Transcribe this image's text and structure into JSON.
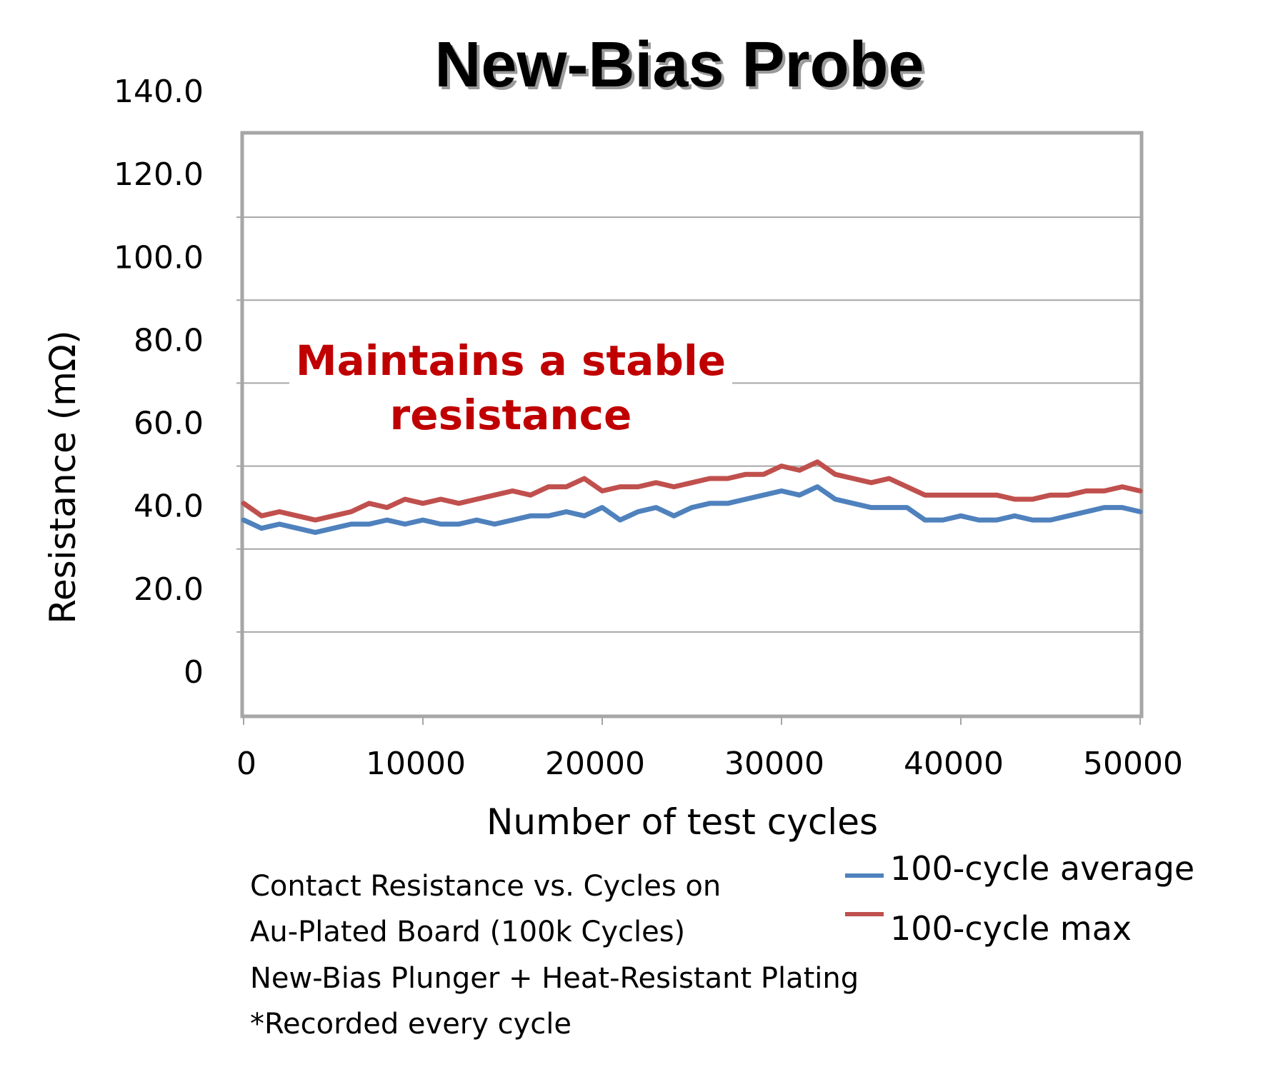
{
  "chart_data": {
    "type": "line",
    "title": "New-Bias Probe",
    "xlabel": "Number of test cycles",
    "ylabel": "Resistance (mΩ)",
    "xlim": [
      0,
      50000
    ],
    "ylim": [
      0,
      140
    ],
    "x_ticks": [
      "0",
      "10000",
      "20000",
      "30000",
      "40000",
      "50000"
    ],
    "y_ticks": [
      "0",
      "20.0",
      "40.0",
      "60.0",
      "80.0",
      "100.0",
      "120.0",
      "140.0"
    ],
    "grid": true,
    "legend_position": "bottom-right",
    "annotation": [
      "Maintains a stable",
      "resistance"
    ],
    "caption": [
      "Contact Resistance vs. Cycles on",
      "Au-Plated Board (100k Cycles)",
      "New-Bias Plunger + Heat-Resistant Plating",
      "*Recorded every cycle"
    ],
    "x": [
      0,
      1000,
      2000,
      3000,
      4000,
      5000,
      6000,
      7000,
      8000,
      9000,
      10000,
      11000,
      12000,
      13000,
      14000,
      15000,
      16000,
      17000,
      18000,
      19000,
      20000,
      21000,
      22000,
      23000,
      24000,
      25000,
      26000,
      27000,
      28000,
      29000,
      30000,
      31000,
      32000,
      33000,
      34000,
      35000,
      36000,
      37000,
      38000,
      39000,
      40000,
      41000,
      42000,
      43000,
      44000,
      45000,
      46000,
      47000,
      48000,
      49000,
      50000
    ],
    "series": [
      {
        "name": "100-cycle average",
        "color": "#4f81bd",
        "values": [
          47,
          45,
          46,
          45,
          44,
          45,
          46,
          46,
          47,
          46,
          47,
          46,
          46,
          47,
          46,
          47,
          48,
          48,
          49,
          48,
          50,
          47,
          49,
          50,
          48,
          50,
          51,
          51,
          52,
          53,
          54,
          53,
          55,
          52,
          51,
          50,
          50,
          50,
          47,
          47,
          48,
          47,
          47,
          48,
          47,
          47,
          48,
          49,
          50,
          50,
          49
        ]
      },
      {
        "name": "100-cycle max",
        "color": "#c0504d",
        "values": [
          51,
          48,
          49,
          48,
          47,
          48,
          49,
          51,
          50,
          52,
          51,
          52,
          51,
          52,
          53,
          54,
          53,
          55,
          55,
          57,
          54,
          55,
          55,
          56,
          55,
          56,
          57,
          57,
          58,
          58,
          60,
          59,
          61,
          58,
          57,
          56,
          57,
          55,
          53,
          53,
          53,
          53,
          53,
          52,
          52,
          53,
          53,
          54,
          54,
          55,
          54
        ]
      }
    ]
  }
}
